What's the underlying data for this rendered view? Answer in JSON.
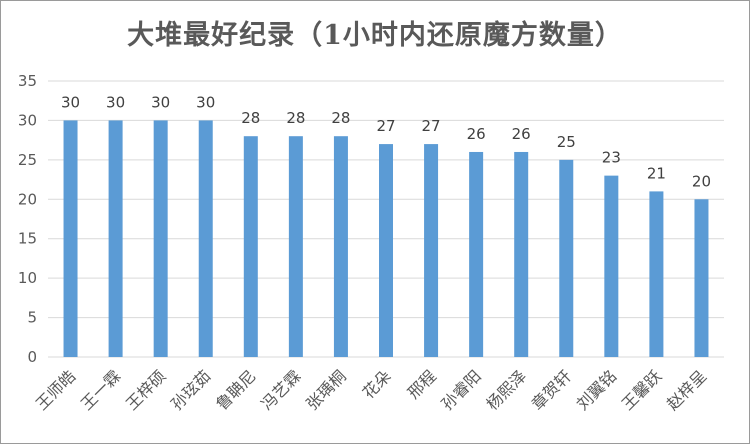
{
  "chart_data": {
    "type": "bar",
    "title": "大堆最好纪录（1小时内还原魔方数量）",
    "xlabel": "",
    "ylabel": "",
    "ylim": [
      0,
      35
    ],
    "yticks": [
      0,
      5,
      10,
      15,
      20,
      25,
      30,
      35
    ],
    "grid": true,
    "legend": "none",
    "categories": [
      "王师皓",
      "王一霖",
      "王梓硕",
      "孙玹茹",
      "鲁聃尼",
      "冯艺霖",
      "张瑀桐",
      "花朵",
      "邢程",
      "孙睿阳",
      "杨熙泽",
      "章贺轩",
      "刘翼铭",
      "王馨跃",
      "赵梓呈"
    ],
    "values": [
      30,
      30,
      30,
      30,
      28,
      28,
      28,
      27,
      27,
      26,
      26,
      25,
      23,
      21,
      20
    ],
    "bar_color": "#5b9bd5",
    "grid_color": "#d9d9d9"
  }
}
